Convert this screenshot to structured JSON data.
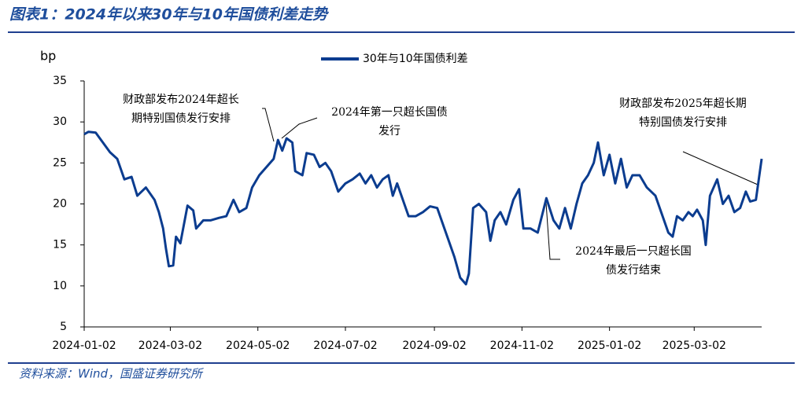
{
  "chart_data": {
    "type": "line",
    "title": "图表1：2024年以来30年与10年国债利差走势",
    "source": "资料来源：Wind，国盛证券研究所",
    "y_unit": "bp",
    "legend_position": "top",
    "x": [
      "2024-01-02",
      "2024-01-05",
      "2024-01-10",
      "2024-01-15",
      "2024-01-20",
      "2024-01-25",
      "2024-01-30",
      "2024-02-04",
      "2024-02-08",
      "2024-02-14",
      "2024-02-20",
      "2024-02-23",
      "2024-02-26",
      "2024-02-28",
      "2024-03-01",
      "2024-03-04",
      "2024-03-06",
      "2024-03-09",
      "2024-03-14",
      "2024-03-18",
      "2024-03-20",
      "2024-03-25",
      "2024-03-30",
      "2024-04-05",
      "2024-04-10",
      "2024-04-15",
      "2024-04-19",
      "2024-04-24",
      "2024-04-28",
      "2024-05-03",
      "2024-05-08",
      "2024-05-13",
      "2024-05-16",
      "2024-05-19",
      "2024-05-22",
      "2024-05-26",
      "2024-05-28",
      "2024-06-02",
      "2024-06-05",
      "2024-06-10",
      "2024-06-14",
      "2024-06-18",
      "2024-06-22",
      "2024-06-27",
      "2024-07-02",
      "2024-07-07",
      "2024-07-12",
      "2024-07-16",
      "2024-07-20",
      "2024-07-24",
      "2024-07-28",
      "2024-08-01",
      "2024-08-04",
      "2024-08-07",
      "2024-08-11",
      "2024-08-15",
      "2024-08-20",
      "2024-08-25",
      "2024-08-30",
      "2024-09-04",
      "2024-09-08",
      "2024-09-12",
      "2024-09-16",
      "2024-09-20",
      "2024-09-24",
      "2024-09-26",
      "2024-09-29",
      "2024-10-03",
      "2024-10-08",
      "2024-10-11",
      "2024-10-14",
      "2024-10-18",
      "2024-10-22",
      "2024-10-27",
      "2024-10-31",
      "2024-11-03",
      "2024-11-08",
      "2024-11-13",
      "2024-11-19",
      "2024-11-24",
      "2024-11-28",
      "2024-12-02",
      "2024-12-06",
      "2024-12-10",
      "2024-12-14",
      "2024-12-18",
      "2024-12-22",
      "2024-12-25",
      "2024-12-29",
      "2025-01-02",
      "2025-01-06",
      "2025-01-10",
      "2025-01-14",
      "2025-01-18",
      "2025-01-23",
      "2025-01-28",
      "2025-02-03",
      "2025-02-08",
      "2025-02-12",
      "2025-02-15",
      "2025-02-18",
      "2025-02-22",
      "2025-02-26",
      "2025-03-01",
      "2025-03-04",
      "2025-03-08",
      "2025-03-10",
      "2025-03-13",
      "2025-03-18",
      "2025-03-22",
      "2025-03-26",
      "2025-03-30",
      "2025-04-03",
      "2025-04-07",
      "2025-04-10",
      "2025-04-14",
      "2025-04-18"
    ],
    "series": [
      {
        "name": "30年与10年国债利差",
        "color": "#0b3c8f",
        "values": [
          28.5,
          28.8,
          28.7,
          27.5,
          26.3,
          25.5,
          23.0,
          23.3,
          21.0,
          22.0,
          20.5,
          19.0,
          17.0,
          14.5,
          12.4,
          12.5,
          16.0,
          15.2,
          19.8,
          19.2,
          17.0,
          18.0,
          18.0,
          18.3,
          18.5,
          20.5,
          19.0,
          19.5,
          22.0,
          23.5,
          24.5,
          25.5,
          27.8,
          26.5,
          28.0,
          27.5,
          24.0,
          23.5,
          26.2,
          26.0,
          24.5,
          25.0,
          24.0,
          21.5,
          22.5,
          23.0,
          23.7,
          22.5,
          23.5,
          22.0,
          23.0,
          23.5,
          21.0,
          22.5,
          20.5,
          18.5,
          18.5,
          19.0,
          19.7,
          19.5,
          17.5,
          15.5,
          13.5,
          11.0,
          10.2,
          11.5,
          19.5,
          20.0,
          19.0,
          15.5,
          18.0,
          19.0,
          17.5,
          20.5,
          21.8,
          17.0,
          17.0,
          16.5,
          20.7,
          18.0,
          17.0,
          19.5,
          17.0,
          20.0,
          22.5,
          23.5,
          25.0,
          27.5,
          23.5,
          26.0,
          22.5,
          25.5,
          22.0,
          23.5,
          23.5,
          22.0,
          21.0,
          18.5,
          16.5,
          16.0,
          18.5,
          18.0,
          19.0,
          18.5,
          19.3,
          18.0,
          15.0,
          21.0,
          23.0,
          20.0,
          21.0,
          19.0,
          19.5,
          21.5,
          20.3,
          20.5,
          25.5
        ]
      }
    ],
    "xlim": [
      "2024-01-02",
      "2025-04-18"
    ],
    "xticks": [
      "2024-01-02",
      "2024-03-02",
      "2024-05-02",
      "2024-07-02",
      "2024-09-02",
      "2024-11-02",
      "2025-01-02",
      "2025-03-02"
    ],
    "ylim": [
      5,
      35
    ],
    "yticks": [
      5,
      10,
      15,
      20,
      25,
      30,
      35
    ],
    "grid": false,
    "annotations": [
      {
        "lines": [
          "财政部发布2024年超长",
          "期特别国债发行安排"
        ]
      },
      {
        "lines": [
          "2024年第一只超长国债",
          "发行"
        ]
      },
      {
        "lines": [
          "2024年最后一只超长国",
          "债发行结束"
        ]
      },
      {
        "lines": [
          "财政部发布2025年超长期",
          "特别国债发行安排"
        ]
      }
    ]
  }
}
